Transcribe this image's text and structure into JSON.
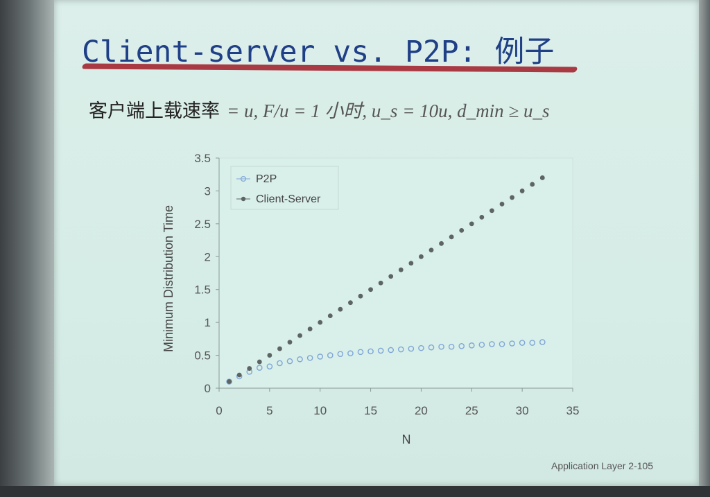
{
  "slide": {
    "title": "Client-server vs. P2P: 例子",
    "subtitle_text": "客户端上载速率",
    "subtitle_math": "= u,   F/u = 1 小时,   u_s = 10u,   d_min ≥ u_s",
    "footer": "Application Layer   2-105"
  },
  "chart_data": {
    "type": "scatter",
    "xlabel": "N",
    "ylabel": "Minimum Distribution Time",
    "xlim": [
      0,
      35
    ],
    "ylim": [
      0,
      3.5
    ],
    "xticks": [
      0,
      5,
      10,
      15,
      20,
      25,
      30,
      35
    ],
    "yticks": [
      0,
      0.5,
      1,
      1.5,
      2,
      2.5,
      3,
      3.5
    ],
    "grid": false,
    "legend_position": "top-left",
    "series": [
      {
        "name": "P2P",
        "color": "#7fa6d8",
        "marker": "hollow-circle",
        "x": [
          1,
          2,
          3,
          4,
          5,
          6,
          7,
          8,
          9,
          10,
          11,
          12,
          13,
          14,
          15,
          16,
          17,
          18,
          19,
          20,
          21,
          22,
          23,
          24,
          25,
          26,
          27,
          28,
          29,
          30,
          31,
          32
        ],
        "values": [
          0.1,
          0.18,
          0.25,
          0.31,
          0.33,
          0.38,
          0.41,
          0.44,
          0.46,
          0.48,
          0.5,
          0.52,
          0.53,
          0.55,
          0.56,
          0.57,
          0.58,
          0.59,
          0.6,
          0.61,
          0.62,
          0.63,
          0.63,
          0.64,
          0.65,
          0.66,
          0.67,
          0.67,
          0.68,
          0.69,
          0.69,
          0.7
        ]
      },
      {
        "name": "Client-Server",
        "color": "#5d6464",
        "marker": "filled-circle",
        "x": [
          1,
          2,
          3,
          4,
          5,
          6,
          7,
          8,
          9,
          10,
          11,
          12,
          13,
          14,
          15,
          16,
          17,
          18,
          19,
          20,
          21,
          22,
          23,
          24,
          25,
          26,
          27,
          28,
          29,
          30,
          31,
          32
        ],
        "values": [
          0.1,
          0.2,
          0.3,
          0.4,
          0.5,
          0.6,
          0.7,
          0.8,
          0.9,
          1.0,
          1.1,
          1.2,
          1.3,
          1.4,
          1.5,
          1.6,
          1.7,
          1.8,
          1.9,
          2.0,
          2.1,
          2.2,
          2.3,
          2.4,
          2.5,
          2.6,
          2.7,
          2.8,
          2.9,
          3.0,
          3.1,
          3.2
        ]
      }
    ]
  }
}
